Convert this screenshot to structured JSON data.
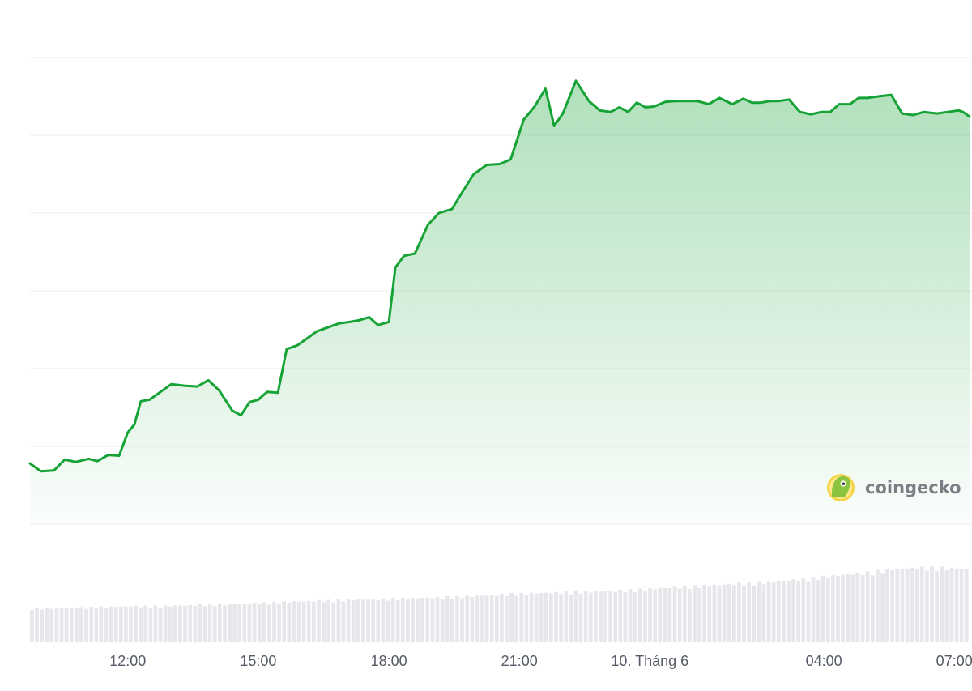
{
  "chart_data": {
    "type": "area",
    "title": "",
    "xlabel": "",
    "ylabel": "",
    "x_unit": "hours since start of plotted window",
    "x_range": [
      9.75,
      31.35
    ],
    "y_range": [
      0,
      6
    ],
    "grid": true,
    "legend": "none",
    "colors": {
      "line": "#16a336",
      "fill_top": "#16a336",
      "volume": "#e5e7eb",
      "grid": "#eceef1",
      "tick": "#555b66"
    },
    "x_ticks": [
      {
        "x": 12,
        "label": "12:00"
      },
      {
        "x": 15,
        "label": "15:00"
      },
      {
        "x": 18,
        "label": "18:00"
      },
      {
        "x": 21,
        "label": "21:00"
      },
      {
        "x": 24,
        "label": "10. Tháng 6"
      },
      {
        "x": 28,
        "label": "04:00"
      },
      {
        "x": 31,
        "label": "07:00"
      }
    ],
    "series": [
      {
        "x": [
          9.75,
          10.0,
          10.3,
          10.55,
          10.8,
          11.1,
          11.3,
          11.55,
          11.8,
          12.0,
          12.15,
          12.3,
          12.5,
          12.75,
          13.0,
          13.3,
          13.6,
          13.85,
          14.1,
          14.4,
          14.6,
          14.8,
          15.0,
          15.2,
          15.45,
          15.65,
          15.9,
          16.15,
          16.35,
          16.6,
          16.85,
          17.1,
          17.3,
          17.55,
          17.75,
          18.0,
          18.15,
          18.35,
          18.6,
          18.9,
          19.15,
          19.45,
          19.7,
          19.95,
          20.25,
          20.55,
          20.8,
          21.1,
          21.35,
          21.6,
          21.8,
          22.0,
          22.3,
          22.6,
          22.85,
          23.1,
          23.3,
          23.5,
          23.7,
          23.9,
          24.1,
          24.35,
          24.6,
          24.85,
          25.1,
          25.35,
          25.6,
          25.9,
          26.15,
          26.35,
          26.55,
          26.75,
          26.95,
          27.2,
          27.45,
          27.7,
          27.95,
          28.15,
          28.35,
          28.6,
          28.8,
          29.0,
          29.25,
          29.55,
          29.8,
          30.05,
          30.3,
          30.6,
          30.85,
          31.1,
          31.2,
          31.35
        ],
        "values": [
          0.78,
          0.68,
          0.69,
          0.83,
          0.8,
          0.84,
          0.81,
          0.89,
          0.88,
          1.18,
          1.28,
          1.58,
          1.6,
          1.7,
          1.8,
          1.78,
          1.77,
          1.85,
          1.72,
          1.46,
          1.4,
          1.57,
          1.6,
          1.7,
          1.69,
          2.25,
          2.3,
          2.4,
          2.48,
          2.53,
          2.58,
          2.6,
          2.62,
          2.66,
          2.56,
          2.6,
          3.3,
          3.45,
          3.48,
          3.85,
          4.0,
          4.05,
          4.28,
          4.5,
          4.62,
          4.63,
          4.69,
          5.2,
          5.37,
          5.6,
          5.12,
          5.28,
          5.7,
          5.44,
          5.32,
          5.3,
          5.36,
          5.3,
          5.42,
          5.36,
          5.37,
          5.43,
          5.44,
          5.44,
          5.44,
          5.4,
          5.48,
          5.4,
          5.47,
          5.42,
          5.42,
          5.44,
          5.44,
          5.46,
          5.3,
          5.27,
          5.3,
          5.3,
          5.4,
          5.4,
          5.48,
          5.48,
          5.5,
          5.52,
          5.28,
          5.26,
          5.3,
          5.28,
          5.3,
          5.32,
          5.3,
          5.24
        ]
      }
    ],
    "volume": {
      "x_range": [
        9.75,
        31.35
      ],
      "values": [
        0.46,
        0.46,
        0.47,
        0.48,
        0.49,
        0.49,
        0.5,
        0.51,
        0.52,
        0.53,
        0.55,
        0.56,
        0.57,
        0.58,
        0.59,
        0.6,
        0.61,
        0.62,
        0.64,
        0.66,
        0.67,
        0.68,
        0.69,
        0.7,
        0.72,
        0.74,
        0.76,
        0.78,
        0.8,
        0.82,
        0.85,
        0.88,
        0.92,
        0.95,
        1.0,
        1.02,
        1.02,
        1.0
      ]
    }
  },
  "logo": {
    "name": "coingecko",
    "icon": "gecko-logo-icon"
  }
}
